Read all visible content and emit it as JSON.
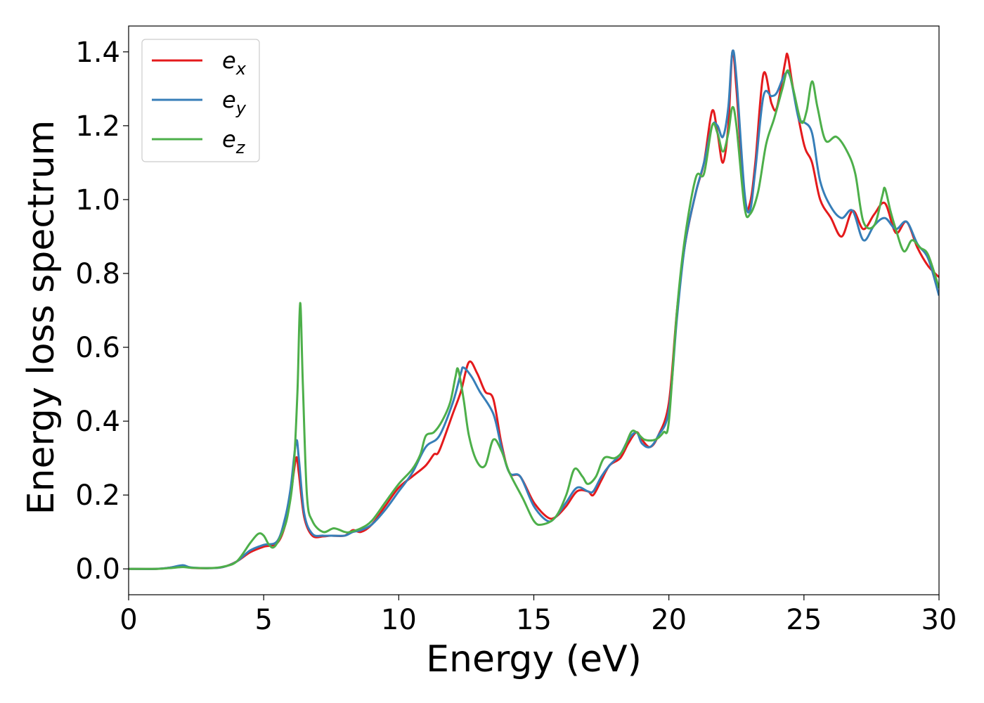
{
  "chart_data": {
    "type": "line",
    "title": "",
    "xlabel": "Energy (eV)",
    "ylabel": "Energy loss spectrum",
    "xlim": [
      0,
      30
    ],
    "ylim": [
      -0.07,
      1.47
    ],
    "xticks": [
      0,
      5,
      10,
      15,
      20,
      25,
      30
    ],
    "yticks": [
      0.0,
      0.2,
      0.4,
      0.6,
      0.8,
      1.0,
      1.2,
      1.4
    ],
    "xtick_labels": [
      "0",
      "5",
      "10",
      "15",
      "20",
      "25",
      "30"
    ],
    "ytick_labels": [
      "0.0",
      "0.2",
      "0.4",
      "0.6",
      "0.8",
      "1.0",
      "1.2",
      "1.4"
    ],
    "grid": false,
    "legend_position": "top-left",
    "series": [
      {
        "name": "e_x",
        "label_base": "e",
        "label_sub": "x",
        "color": "#e41a1c",
        "points": [
          [
            0,
            0.0
          ],
          [
            1.0,
            0.0
          ],
          [
            1.5,
            0.003
          ],
          [
            2.0,
            0.008
          ],
          [
            2.3,
            0.003
          ],
          [
            3.0,
            0.002
          ],
          [
            3.5,
            0.005
          ],
          [
            4.0,
            0.02
          ],
          [
            4.5,
            0.045
          ],
          [
            5.0,
            0.06
          ],
          [
            5.5,
            0.07
          ],
          [
            5.8,
            0.12
          ],
          [
            6.0,
            0.2
          ],
          [
            6.2,
            0.3
          ],
          [
            6.3,
            0.26
          ],
          [
            6.5,
            0.14
          ],
          [
            6.8,
            0.09
          ],
          [
            7.2,
            0.088
          ],
          [
            7.5,
            0.09
          ],
          [
            8.0,
            0.09
          ],
          [
            8.3,
            0.105
          ],
          [
            8.6,
            0.1
          ],
          [
            9.0,
            0.12
          ],
          [
            9.5,
            0.17
          ],
          [
            10.0,
            0.22
          ],
          [
            10.5,
            0.25
          ],
          [
            11.0,
            0.28
          ],
          [
            11.3,
            0.31
          ],
          [
            11.5,
            0.32
          ],
          [
            12.0,
            0.42
          ],
          [
            12.3,
            0.48
          ],
          [
            12.6,
            0.56
          ],
          [
            12.9,
            0.53
          ],
          [
            13.2,
            0.48
          ],
          [
            13.5,
            0.46
          ],
          [
            13.8,
            0.34
          ],
          [
            14.1,
            0.26
          ],
          [
            14.5,
            0.25
          ],
          [
            15.0,
            0.18
          ],
          [
            15.5,
            0.14
          ],
          [
            15.8,
            0.14
          ],
          [
            16.2,
            0.17
          ],
          [
            16.6,
            0.21
          ],
          [
            17.0,
            0.21
          ],
          [
            17.2,
            0.2
          ],
          [
            17.5,
            0.24
          ],
          [
            17.8,
            0.28
          ],
          [
            18.2,
            0.3
          ],
          [
            18.5,
            0.34
          ],
          [
            18.8,
            0.37
          ],
          [
            19.0,
            0.35
          ],
          [
            19.3,
            0.33
          ],
          [
            19.6,
            0.36
          ],
          [
            20.0,
            0.45
          ],
          [
            20.3,
            0.7
          ],
          [
            20.6,
            0.88
          ],
          [
            21.0,
            1.02
          ],
          [
            21.3,
            1.1
          ],
          [
            21.6,
            1.24
          ],
          [
            21.8,
            1.18
          ],
          [
            22.0,
            1.1
          ],
          [
            22.2,
            1.2
          ],
          [
            22.35,
            1.4
          ],
          [
            22.5,
            1.3
          ],
          [
            22.8,
            1.0
          ],
          [
            23.0,
            0.99
          ],
          [
            23.2,
            1.1
          ],
          [
            23.5,
            1.34
          ],
          [
            23.8,
            1.26
          ],
          [
            24.0,
            1.25
          ],
          [
            24.3,
            1.37
          ],
          [
            24.4,
            1.39
          ],
          [
            24.6,
            1.3
          ],
          [
            25.0,
            1.15
          ],
          [
            25.3,
            1.1
          ],
          [
            25.6,
            1.0
          ],
          [
            26.0,
            0.95
          ],
          [
            26.4,
            0.9
          ],
          [
            26.8,
            0.97
          ],
          [
            27.2,
            0.92
          ],
          [
            27.6,
            0.96
          ],
          [
            28.0,
            0.99
          ],
          [
            28.4,
            0.91
          ],
          [
            28.8,
            0.94
          ],
          [
            29.2,
            0.87
          ],
          [
            29.6,
            0.82
          ],
          [
            30.0,
            0.79
          ]
        ]
      },
      {
        "name": "e_y",
        "label_base": "e",
        "label_sub": "y",
        "color": "#377eb8",
        "points": [
          [
            0,
            0.0
          ],
          [
            1.0,
            0.0
          ],
          [
            1.5,
            0.003
          ],
          [
            2.0,
            0.01
          ],
          [
            2.3,
            0.004
          ],
          [
            3.0,
            0.002
          ],
          [
            3.5,
            0.005
          ],
          [
            4.0,
            0.02
          ],
          [
            4.5,
            0.05
          ],
          [
            5.0,
            0.065
          ],
          [
            5.5,
            0.075
          ],
          [
            5.8,
            0.14
          ],
          [
            6.0,
            0.22
          ],
          [
            6.2,
            0.345
          ],
          [
            6.3,
            0.3
          ],
          [
            6.5,
            0.15
          ],
          [
            6.8,
            0.095
          ],
          [
            7.2,
            0.09
          ],
          [
            7.5,
            0.09
          ],
          [
            8.0,
            0.09
          ],
          [
            8.3,
            0.1
          ],
          [
            8.6,
            0.105
          ],
          [
            9.0,
            0.12
          ],
          [
            9.5,
            0.16
          ],
          [
            10.0,
            0.21
          ],
          [
            10.5,
            0.26
          ],
          [
            11.0,
            0.33
          ],
          [
            11.5,
            0.36
          ],
          [
            12.0,
            0.45
          ],
          [
            12.3,
            0.53
          ],
          [
            12.4,
            0.545
          ],
          [
            12.7,
            0.52
          ],
          [
            13.0,
            0.48
          ],
          [
            13.5,
            0.42
          ],
          [
            13.8,
            0.33
          ],
          [
            14.1,
            0.26
          ],
          [
            14.5,
            0.25
          ],
          [
            15.0,
            0.17
          ],
          [
            15.5,
            0.13
          ],
          [
            15.8,
            0.14
          ],
          [
            16.2,
            0.18
          ],
          [
            16.6,
            0.22
          ],
          [
            17.0,
            0.21
          ],
          [
            17.2,
            0.21
          ],
          [
            17.5,
            0.25
          ],
          [
            17.8,
            0.28
          ],
          [
            18.2,
            0.31
          ],
          [
            18.5,
            0.35
          ],
          [
            18.8,
            0.37
          ],
          [
            19.0,
            0.34
          ],
          [
            19.3,
            0.33
          ],
          [
            19.6,
            0.36
          ],
          [
            20.0,
            0.43
          ],
          [
            20.3,
            0.68
          ],
          [
            20.6,
            0.88
          ],
          [
            21.0,
            1.02
          ],
          [
            21.3,
            1.1
          ],
          [
            21.6,
            1.2
          ],
          [
            21.8,
            1.2
          ],
          [
            22.0,
            1.17
          ],
          [
            22.2,
            1.25
          ],
          [
            22.35,
            1.4
          ],
          [
            22.5,
            1.33
          ],
          [
            22.8,
            1.02
          ],
          [
            23.0,
            0.97
          ],
          [
            23.2,
            1.08
          ],
          [
            23.5,
            1.28
          ],
          [
            23.8,
            1.28
          ],
          [
            24.0,
            1.29
          ],
          [
            24.3,
            1.34
          ],
          [
            24.5,
            1.33
          ],
          [
            24.8,
            1.22
          ],
          [
            25.0,
            1.21
          ],
          [
            25.3,
            1.18
          ],
          [
            25.6,
            1.05
          ],
          [
            26.0,
            0.98
          ],
          [
            26.4,
            0.95
          ],
          [
            26.8,
            0.97
          ],
          [
            27.2,
            0.89
          ],
          [
            27.6,
            0.93
          ],
          [
            28.0,
            0.95
          ],
          [
            28.4,
            0.92
          ],
          [
            28.8,
            0.94
          ],
          [
            29.2,
            0.88
          ],
          [
            29.6,
            0.84
          ],
          [
            30.0,
            0.74
          ]
        ]
      },
      {
        "name": "e_z",
        "label_base": "e",
        "label_sub": "z",
        "color": "#4daf4a",
        "points": [
          [
            0,
            0.0
          ],
          [
            1.0,
            0.0
          ],
          [
            1.5,
            0.002
          ],
          [
            2.0,
            0.005
          ],
          [
            2.3,
            0.003
          ],
          [
            3.0,
            0.002
          ],
          [
            3.5,
            0.006
          ],
          [
            4.0,
            0.02
          ],
          [
            4.5,
            0.07
          ],
          [
            4.8,
            0.095
          ],
          [
            5.0,
            0.09
          ],
          [
            5.2,
            0.065
          ],
          [
            5.4,
            0.06
          ],
          [
            5.7,
            0.1
          ],
          [
            5.9,
            0.15
          ],
          [
            6.1,
            0.26
          ],
          [
            6.25,
            0.48
          ],
          [
            6.35,
            0.72
          ],
          [
            6.45,
            0.5
          ],
          [
            6.6,
            0.2
          ],
          [
            6.8,
            0.13
          ],
          [
            7.2,
            0.1
          ],
          [
            7.6,
            0.11
          ],
          [
            8.0,
            0.1
          ],
          [
            8.2,
            0.1
          ],
          [
            8.6,
            0.11
          ],
          [
            9.0,
            0.13
          ],
          [
            9.5,
            0.18
          ],
          [
            10.0,
            0.23
          ],
          [
            10.5,
            0.27
          ],
          [
            10.8,
            0.31
          ],
          [
            11.0,
            0.36
          ],
          [
            11.3,
            0.37
          ],
          [
            11.6,
            0.4
          ],
          [
            11.9,
            0.45
          ],
          [
            12.1,
            0.52
          ],
          [
            12.2,
            0.54
          ],
          [
            12.4,
            0.46
          ],
          [
            12.6,
            0.36
          ],
          [
            12.9,
            0.29
          ],
          [
            13.2,
            0.28
          ],
          [
            13.5,
            0.35
          ],
          [
            13.8,
            0.32
          ],
          [
            14.1,
            0.26
          ],
          [
            14.6,
            0.19
          ],
          [
            15.0,
            0.13
          ],
          [
            15.3,
            0.12
          ],
          [
            15.8,
            0.14
          ],
          [
            16.2,
            0.2
          ],
          [
            16.5,
            0.27
          ],
          [
            16.8,
            0.25
          ],
          [
            17.0,
            0.23
          ],
          [
            17.3,
            0.25
          ],
          [
            17.6,
            0.3
          ],
          [
            18.0,
            0.3
          ],
          [
            18.3,
            0.32
          ],
          [
            18.6,
            0.37
          ],
          [
            18.8,
            0.37
          ],
          [
            19.1,
            0.35
          ],
          [
            19.5,
            0.35
          ],
          [
            19.8,
            0.37
          ],
          [
            20.0,
            0.4
          ],
          [
            20.3,
            0.7
          ],
          [
            20.6,
            0.9
          ],
          [
            21.0,
            1.06
          ],
          [
            21.3,
            1.07
          ],
          [
            21.6,
            1.2
          ],
          [
            21.8,
            1.18
          ],
          [
            22.0,
            1.13
          ],
          [
            22.2,
            1.18
          ],
          [
            22.35,
            1.25
          ],
          [
            22.5,
            1.2
          ],
          [
            22.8,
            0.98
          ],
          [
            23.0,
            0.96
          ],
          [
            23.3,
            1.02
          ],
          [
            23.6,
            1.15
          ],
          [
            23.9,
            1.22
          ],
          [
            24.2,
            1.3
          ],
          [
            24.4,
            1.35
          ],
          [
            24.6,
            1.3
          ],
          [
            24.9,
            1.21
          ],
          [
            25.1,
            1.24
          ],
          [
            25.3,
            1.32
          ],
          [
            25.5,
            1.25
          ],
          [
            25.8,
            1.16
          ],
          [
            26.2,
            1.17
          ],
          [
            26.6,
            1.13
          ],
          [
            26.9,
            1.07
          ],
          [
            27.2,
            0.94
          ],
          [
            27.6,
            0.93
          ],
          [
            27.9,
            1.01
          ],
          [
            28.0,
            1.03
          ],
          [
            28.2,
            0.97
          ],
          [
            28.4,
            0.92
          ],
          [
            28.7,
            0.86
          ],
          [
            29.0,
            0.89
          ],
          [
            29.3,
            0.87
          ],
          [
            29.6,
            0.85
          ],
          [
            30.0,
            0.76
          ]
        ]
      }
    ]
  }
}
